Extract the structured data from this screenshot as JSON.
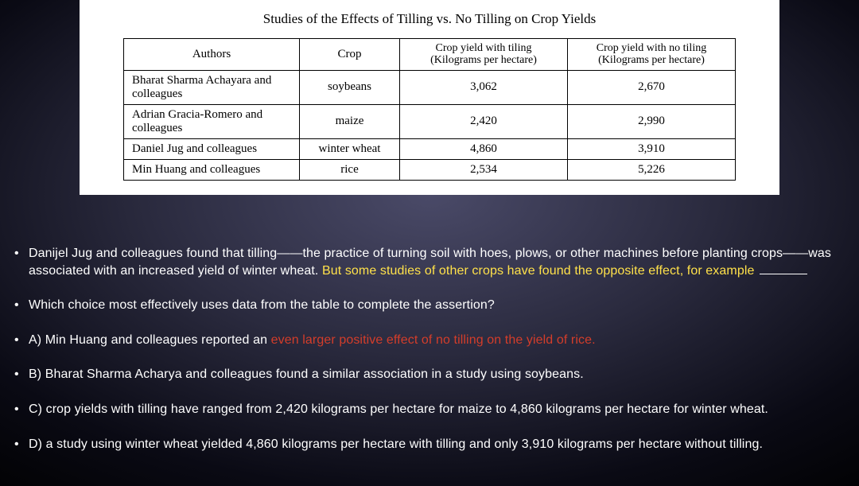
{
  "paper": {
    "title": "Studies of the Effects of Tilling vs. No Tilling on Crop Yields",
    "table": {
      "columns": {
        "authors": "Authors",
        "crop": "Crop",
        "yield_till": "Crop yield with tiling",
        "yield_till_unit": "(Kilograms per hectare)",
        "yield_notill": "Crop yield with no tiling",
        "yield_notill_unit": "(Kilograms per hectare)"
      },
      "rows": [
        {
          "authors": "Bharat Sharma Achayara and colleagues",
          "crop": "soybeans",
          "till": "3,062",
          "notill": "2,670"
        },
        {
          "authors": "Adrian Gracia-Romero and colleagues",
          "crop": "maize",
          "till": "2,420",
          "notill": "2,990"
        },
        {
          "authors": "Daniel Jug and colleagues",
          "crop": "winter wheat",
          "till": "4,860",
          "notill": "3,910"
        },
        {
          "authors": "Min Huang and colleagues",
          "crop": "rice",
          "till": "2,534",
          "notill": "5,226"
        }
      ]
    }
  },
  "question": {
    "stem_part1": "Danijel Jug and colleagues found that tilling——the practice of turning soil with hoes, plows, or other machines before planting crops——was associated with an increased yield of winter wheat. ",
    "stem_highlight": "But some studies of other crops have found the opposite effect, for example ",
    "prompt": "Which choice most effectively uses data from the table to complete the assertion?",
    "choices": {
      "A_prefix": "A) Min Huang and colleagues reported an ",
      "A_highlight": "even larger positive effect of no tilling on the yield of rice.",
      "B": "B) Bharat Sharma Acharya and colleagues found a similar association in a study using soybeans.",
      "C": "C) crop yields with tilling have ranged from 2,420 kilograms per hectare for maize to 4,860 kilograms per hectare for winter wheat.",
      "D": "D) a study using winter wheat yielded 4,860 kilograms per hectare with tilling and only 3,910 kilograms per hectare without tilling."
    }
  },
  "colors": {
    "highlight_yellow": "#ffe14a",
    "highlight_red": "#d43d2a",
    "text_white": "#ffffff",
    "paper_bg": "#ffffff",
    "paper_text": "#000000"
  }
}
